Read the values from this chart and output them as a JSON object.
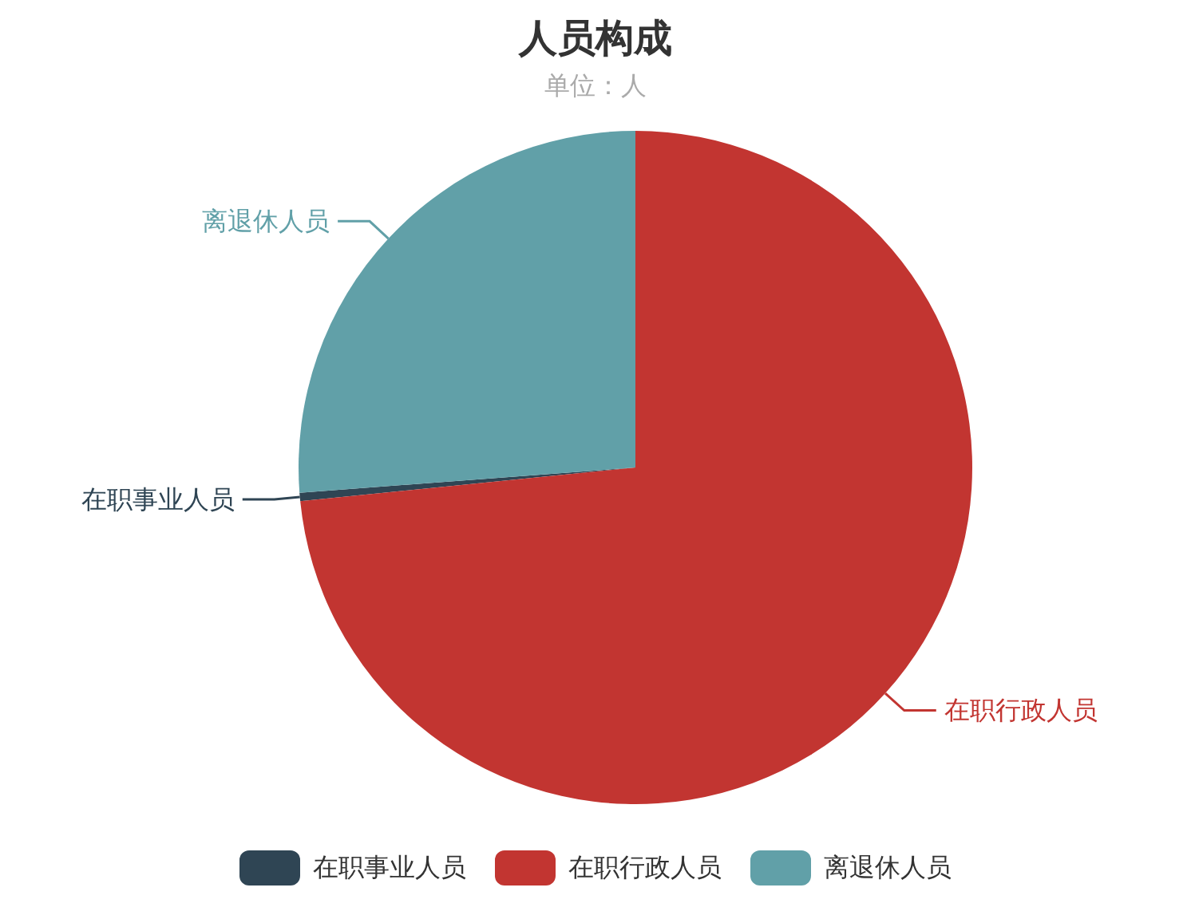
{
  "chart_data": {
    "type": "pie",
    "title": "人员构成",
    "subtitle": "单位：人",
    "categories": [
      "在职事业人员",
      "在职行政人员",
      "离退休人员"
    ],
    "values": [
      0.4,
      73.4,
      26.2
    ],
    "colors": [
      "#2f4554",
      "#c23531",
      "#61a0a8"
    ],
    "legend": "bottom"
  }
}
